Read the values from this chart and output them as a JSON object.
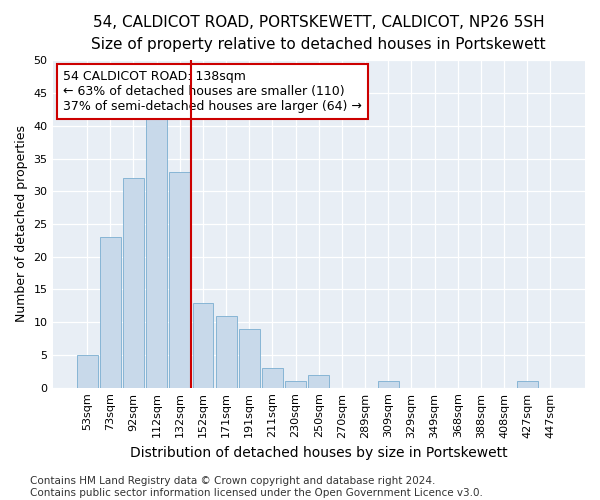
{
  "title1": "54, CALDICOT ROAD, PORTSKEWETT, CALDICOT, NP26 5SH",
  "title2": "Size of property relative to detached houses in Portskewett",
  "xlabel": "Distribution of detached houses by size in Portskewett",
  "ylabel": "Number of detached properties",
  "categories": [
    "53sqm",
    "73sqm",
    "92sqm",
    "112sqm",
    "132sqm",
    "152sqm",
    "171sqm",
    "191sqm",
    "211sqm",
    "230sqm",
    "250sqm",
    "270sqm",
    "289sqm",
    "309sqm",
    "329sqm",
    "349sqm",
    "368sqm",
    "388sqm",
    "408sqm",
    "427sqm",
    "447sqm"
  ],
  "values": [
    5,
    23,
    32,
    41,
    33,
    13,
    11,
    9,
    3,
    1,
    2,
    0,
    0,
    1,
    0,
    0,
    0,
    0,
    0,
    1,
    0
  ],
  "bar_color": "#c8d9ea",
  "bar_edge_color": "#7aaed0",
  "vline_x": 4.5,
  "vline_color": "#cc0000",
  "annotation_line1": "54 CALDICOT ROAD: 138sqm",
  "annotation_line2": "← 63% of detached houses are smaller (110)",
  "annotation_line3": "37% of semi-detached houses are larger (64) →",
  "annotation_box_color": "#ffffff",
  "annotation_box_edge_color": "#cc0000",
  "ylim": [
    0,
    50
  ],
  "yticks": [
    0,
    5,
    10,
    15,
    20,
    25,
    30,
    35,
    40,
    45,
    50
  ],
  "plot_bg_color": "#e8eef5",
  "footnote": "Contains HM Land Registry data © Crown copyright and database right 2024.\nContains public sector information licensed under the Open Government Licence v3.0.",
  "title1_fontsize": 11,
  "title2_fontsize": 10,
  "xlabel_fontsize": 10,
  "ylabel_fontsize": 9,
  "tick_fontsize": 8,
  "annotation_fontsize": 9,
  "footnote_fontsize": 7.5
}
